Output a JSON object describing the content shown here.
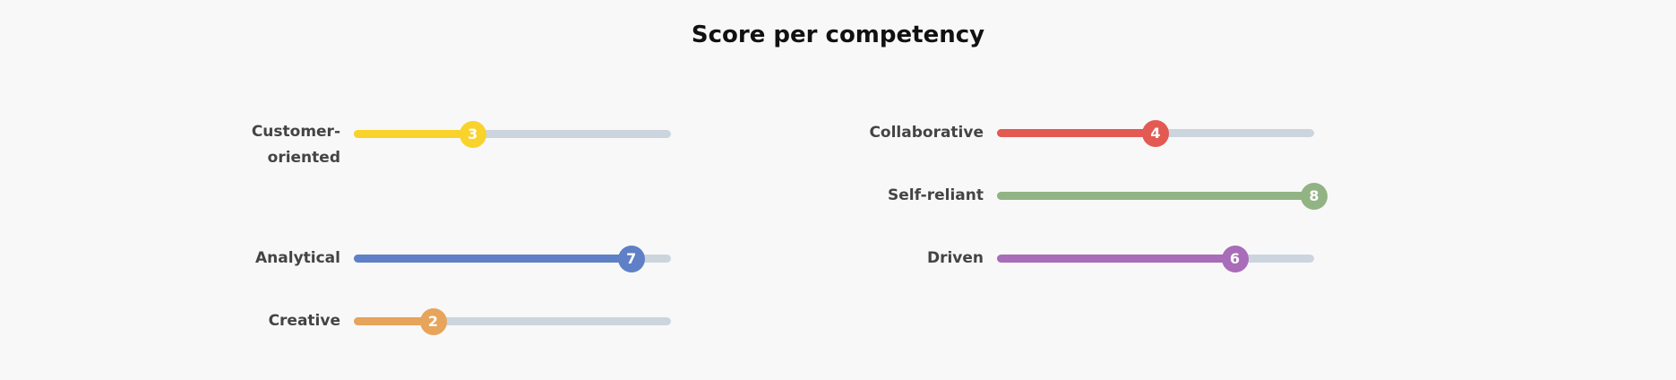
{
  "title": "Score per competency",
  "scale_max": 8,
  "competencies": [
    {
      "label": "Customer-\noriented",
      "score": 3,
      "color": "#f9d32b"
    },
    {
      "label": "Collaborative",
      "score": 4,
      "color": "#e35a52"
    },
    {
      "label": "Self-reliant",
      "score": 8,
      "color": "#92b383"
    },
    {
      "label": "Analytical",
      "score": 7,
      "color": "#5f80c6"
    },
    {
      "label": "Driven",
      "score": 6,
      "color": "#a86cb8"
    },
    {
      "label": "Creative",
      "score": 2,
      "color": "#e7a45b"
    }
  ]
}
